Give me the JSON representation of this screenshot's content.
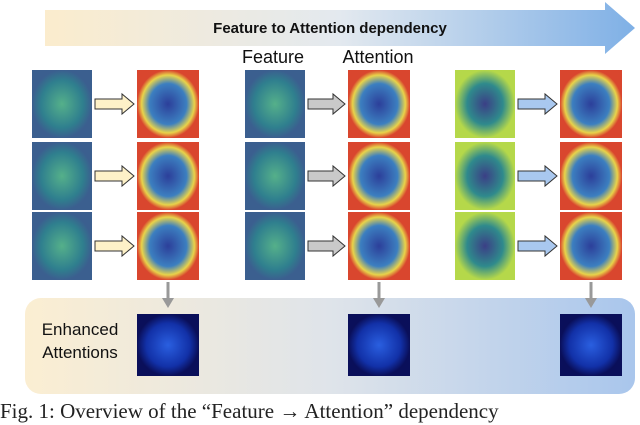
{
  "header": {
    "title": "Feature to Attention dependency"
  },
  "column_labels": [
    "Feature",
    "Attention"
  ],
  "bottom_panel": {
    "label_lines": [
      "Enhanced",
      "Attentions"
    ]
  },
  "caption": "Fig. 1: Overview of the “Feature → Attention” dependency"
}
